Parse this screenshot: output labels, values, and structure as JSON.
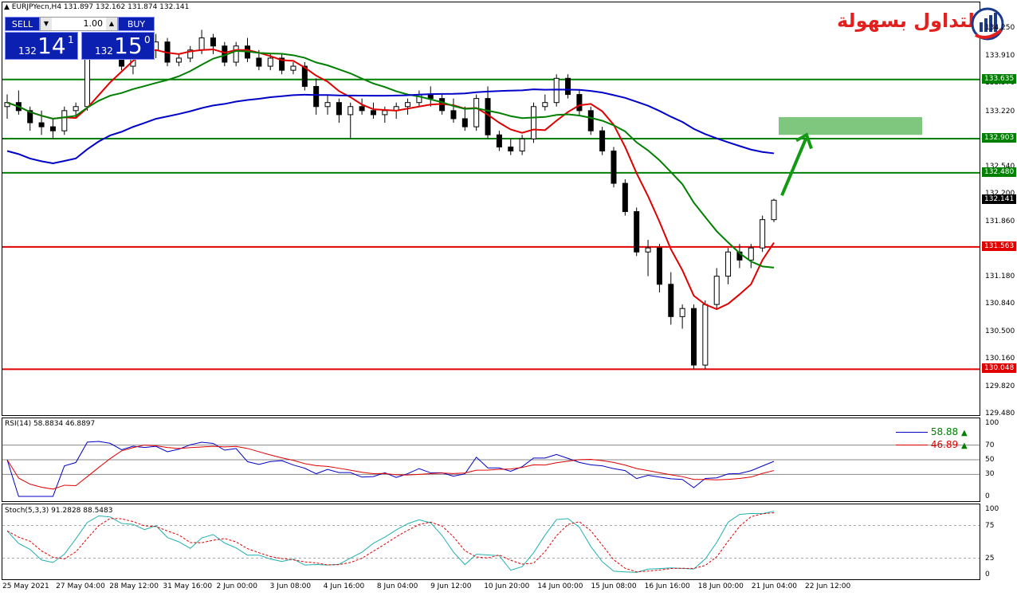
{
  "header": {
    "title": "EURJPYecn,H4  131.897 132.162 131.874 132.141",
    "rsi_title": "RSI(14) 58.8834 46.8897",
    "stoch_title": "Stoch(5,3,3) 91.2828 88.5483"
  },
  "trade_panel": {
    "sell_label": "SELL",
    "buy_label": "BUY",
    "lot": "1.00",
    "sell_small": "132",
    "sell_big": "14",
    "sell_sup": "1",
    "buy_small": "132",
    "buy_big": "15",
    "buy_sup": "0",
    "color": "#0b1fb0"
  },
  "logo": {
    "text": "التداول بسهولة",
    "icon": "bar-chart-logo-icon",
    "color": "#e3201e"
  },
  "price_axis": [
    "134.250",
    "133.910",
    "133.570",
    "133.220",
    "132.880",
    "132.540",
    "132.200",
    "131.860",
    "131.520",
    "131.180",
    "130.840",
    "130.500",
    "130.160",
    "129.820",
    "129.480"
  ],
  "levels": [
    {
      "value": "133.635",
      "color": "#008000"
    },
    {
      "value": "132.903",
      "color": "#008000"
    },
    {
      "value": "132.480",
      "color": "#008000"
    },
    {
      "value": "132.141",
      "color": "#000000"
    },
    {
      "value": "131.563",
      "color": "#e00000"
    },
    {
      "value": "130.048",
      "color": "#e00000"
    }
  ],
  "rsi": {
    "axis": [
      "100",
      "70",
      "50",
      "30",
      "0"
    ],
    "value1": "58.88",
    "value2": "46.89",
    "color1": "#008000",
    "color2": "#e00000"
  },
  "stoch": {
    "axis": [
      "100",
      "75",
      "25",
      "0"
    ]
  },
  "time_axis": [
    "25 May 2021",
    "27 May 04:00",
    "28 May 12:00",
    "31 May 16:00",
    "2 Jun 00:00",
    "3 Jun 08:00",
    "4 Jun 16:00",
    "8 Jun 04:00",
    "9 Jun 12:00",
    "10 Jun 20:00",
    "14 Jun 00:00",
    "15 Jun 08:00",
    "16 Jun 16:00",
    "18 Jun 00:00",
    "21 Jun 04:00",
    "22 Jun 12:00"
  ],
  "colors": {
    "ma_red": "#e00000",
    "ma_green": "#008000",
    "ma_blue": "#0000c8",
    "target_zone": "#7fc77f",
    "arrow": "#129b12"
  },
  "chart_data": {
    "type": "candlestick",
    "symbol": "EURJPYecn",
    "timeframe": "H4",
    "ylim": [
      129.48,
      134.59
    ],
    "series": [
      {
        "values": [
          [
            133.3,
            133.45,
            133.15,
            133.35
          ],
          [
            133.35,
            133.5,
            133.2,
            133.25
          ],
          [
            133.25,
            133.3,
            133.0,
            133.1
          ],
          [
            133.1,
            133.25,
            132.95,
            133.05
          ],
          [
            133.05,
            133.15,
            132.9,
            133.0
          ],
          [
            133.0,
            133.3,
            132.95,
            133.25
          ],
          [
            133.25,
            133.35,
            133.15,
            133.3
          ],
          [
            133.3,
            134.1,
            133.25,
            134.0
          ],
          [
            134.0,
            134.2,
            133.9,
            134.05
          ],
          [
            134.05,
            134.15,
            133.95,
            134.0
          ],
          [
            134.0,
            134.1,
            133.75,
            133.8
          ],
          [
            133.8,
            134.15,
            133.7,
            134.05
          ],
          [
            134.05,
            134.15,
            133.95,
            134.0
          ],
          [
            134.0,
            134.2,
            133.9,
            134.1
          ],
          [
            134.1,
            134.15,
            133.8,
            133.85
          ],
          [
            133.85,
            133.95,
            133.8,
            133.9
          ],
          [
            133.9,
            134.05,
            133.85,
            134.0
          ],
          [
            134.0,
            134.25,
            133.95,
            134.15
          ],
          [
            134.15,
            134.2,
            133.95,
            134.05
          ],
          [
            134.05,
            134.1,
            133.8,
            133.85
          ],
          [
            133.85,
            134.1,
            133.8,
            134.05
          ],
          [
            134.05,
            134.15,
            133.85,
            133.9
          ],
          [
            133.9,
            134.0,
            133.75,
            133.8
          ],
          [
            133.8,
            133.95,
            133.75,
            133.9
          ],
          [
            133.9,
            133.95,
            133.7,
            133.75
          ],
          [
            133.75,
            133.85,
            133.7,
            133.8
          ],
          [
            133.8,
            133.85,
            133.5,
            133.55
          ],
          [
            133.55,
            133.65,
            133.2,
            133.3
          ],
          [
            133.3,
            133.45,
            133.2,
            133.35
          ],
          [
            133.35,
            133.4,
            133.1,
            133.2
          ],
          [
            133.2,
            133.35,
            132.9,
            133.3
          ],
          [
            133.3,
            133.4,
            133.2,
            133.25
          ],
          [
            133.25,
            133.35,
            133.15,
            133.2
          ],
          [
            133.2,
            133.3,
            133.1,
            133.25
          ],
          [
            133.25,
            133.35,
            133.15,
            133.3
          ],
          [
            133.3,
            133.4,
            133.2,
            133.35
          ],
          [
            133.35,
            133.5,
            133.3,
            133.45
          ],
          [
            133.45,
            133.55,
            133.3,
            133.4
          ],
          [
            133.4,
            133.45,
            133.2,
            133.25
          ],
          [
            133.25,
            133.4,
            133.1,
            133.15
          ],
          [
            133.15,
            133.3,
            133.0,
            133.05
          ],
          [
            133.05,
            133.45,
            133.0,
            133.4
          ],
          [
            133.4,
            133.55,
            132.9,
            132.95
          ],
          [
            132.95,
            133.0,
            132.75,
            132.8
          ],
          [
            132.8,
            132.9,
            132.7,
            132.75
          ],
          [
            132.75,
            132.95,
            132.7,
            132.9
          ],
          [
            132.9,
            133.35,
            132.85,
            133.3
          ],
          [
            133.3,
            133.45,
            133.25,
            133.35
          ],
          [
            133.35,
            133.7,
            133.3,
            133.65
          ],
          [
            133.65,
            133.7,
            133.4,
            133.45
          ],
          [
            133.45,
            133.5,
            133.2,
            133.25
          ],
          [
            133.25,
            133.3,
            132.95,
            133.0
          ],
          [
            133.0,
            133.05,
            132.7,
            132.75
          ],
          [
            132.75,
            132.8,
            132.3,
            132.35
          ],
          [
            132.35,
            132.4,
            131.95,
            132.0
          ],
          [
            132.0,
            132.05,
            131.45,
            131.5
          ],
          [
            131.5,
            131.65,
            131.2,
            131.55
          ],
          [
            131.55,
            131.6,
            131.0,
            131.1
          ],
          [
            131.1,
            131.25,
            130.6,
            130.7
          ],
          [
            130.7,
            130.85,
            130.55,
            130.8
          ],
          [
            130.8,
            130.85,
            130.05,
            130.1
          ],
          [
            130.1,
            130.9,
            130.05,
            130.85
          ],
          [
            130.85,
            131.3,
            130.8,
            131.2
          ],
          [
            131.2,
            131.55,
            131.1,
            131.5
          ],
          [
            131.5,
            131.6,
            131.3,
            131.4
          ],
          [
            131.4,
            131.6,
            131.3,
            131.55
          ],
          [
            131.55,
            131.95,
            131.5,
            131.9
          ],
          [
            131.9,
            132.16,
            131.87,
            132.141
          ]
        ]
      }
    ]
  }
}
